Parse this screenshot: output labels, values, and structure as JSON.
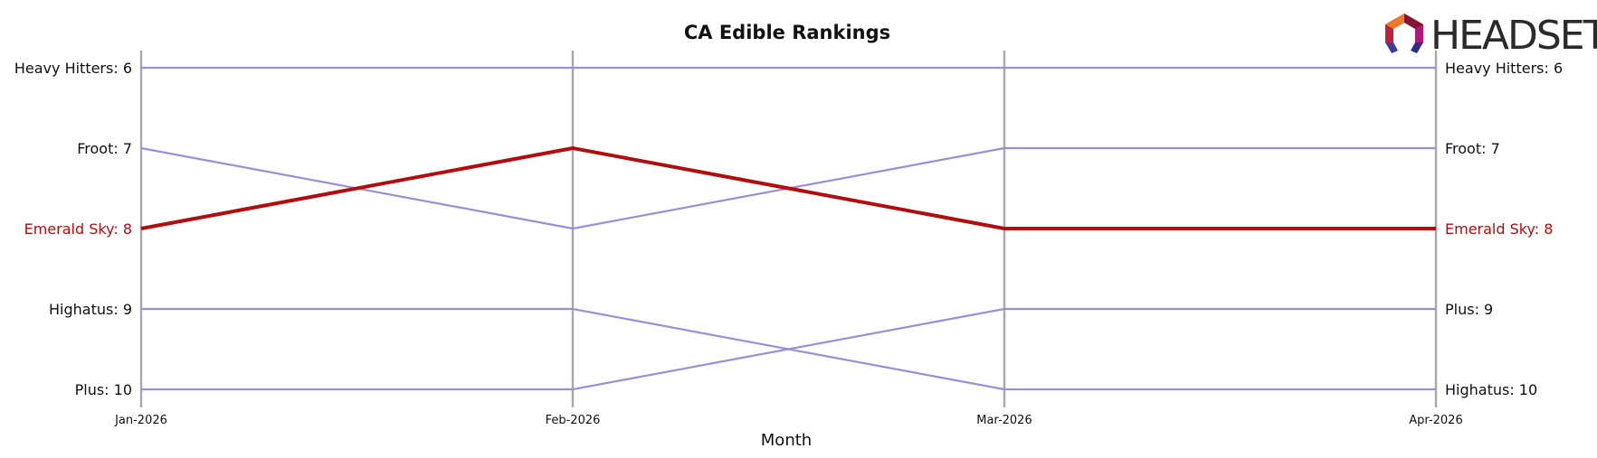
{
  "logo": {
    "text": "HEADSET"
  },
  "chart_data": {
    "type": "line",
    "title": "CA Edible Rankings",
    "xlabel": "Month",
    "ylabel": "",
    "categories": [
      "Jan-2026",
      "Feb-2026",
      "Mar-2026",
      "Apr-2026"
    ],
    "y_range": [
      6,
      10
    ],
    "y_inverted": true,
    "grid": "vertical",
    "highlight_color": "#b30c0c",
    "base_color": "#9b8fdc",
    "series": [
      {
        "name": "Heavy Hitters",
        "values": [
          6,
          6,
          6,
          6
        ],
        "highlight": false
      },
      {
        "name": "Froot",
        "values": [
          7,
          8,
          7,
          7
        ],
        "highlight": false
      },
      {
        "name": "Emerald Sky",
        "values": [
          8,
          7,
          8,
          8
        ],
        "highlight": true
      },
      {
        "name": "Highatus",
        "values": [
          9,
          9,
          10,
          10
        ],
        "highlight": false
      },
      {
        "name": "Plus",
        "values": [
          10,
          10,
          9,
          9
        ],
        "highlight": false
      }
    ],
    "left_labels": [
      {
        "text": "Heavy Hitters: 6",
        "rank": 6,
        "highlight": false
      },
      {
        "text": "Froot: 7",
        "rank": 7,
        "highlight": false
      },
      {
        "text": "Emerald Sky: 8",
        "rank": 8,
        "highlight": true
      },
      {
        "text": "Highatus: 9",
        "rank": 9,
        "highlight": false
      },
      {
        "text": "Plus: 10",
        "rank": 10,
        "highlight": false
      }
    ],
    "right_labels": [
      {
        "text": "Heavy Hitters: 6",
        "rank": 6,
        "highlight": false
      },
      {
        "text": "Froot: 7",
        "rank": 7,
        "highlight": false
      },
      {
        "text": "Emerald Sky: 8",
        "rank": 8,
        "highlight": true
      },
      {
        "text": "Plus: 9",
        "rank": 9,
        "highlight": false
      },
      {
        "text": "Highatus: 10",
        "rank": 10,
        "highlight": false
      }
    ]
  }
}
